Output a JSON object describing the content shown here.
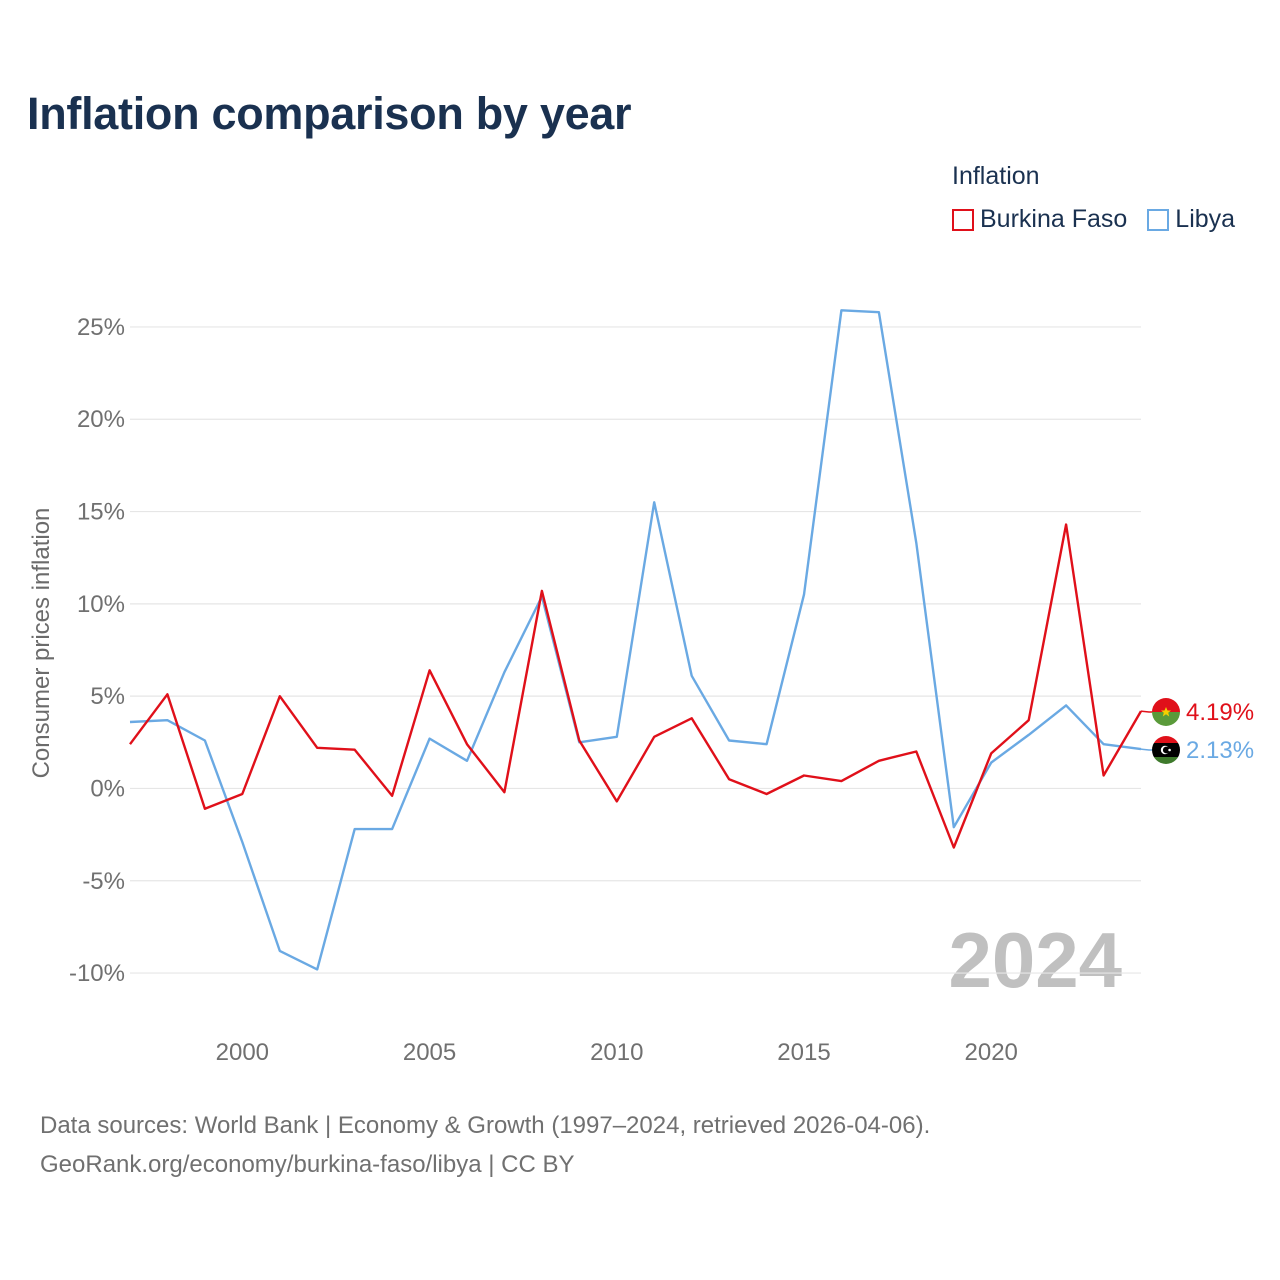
{
  "title": "Inflation comparison by year",
  "legend_title": "Inflation",
  "watermark_year": "2024",
  "source_line1": "Data sources: World Bank | Economy & Growth (1997–2024, retrieved 2026-04-06).",
  "source_line2": "GeoRank.org/economy/burkina-faso/libya | CC BY",
  "chart_data": {
    "type": "line",
    "title": "Inflation comparison by year",
    "xlabel": "",
    "ylabel": "Consumer prices inflation",
    "xlim": [
      1997,
      2024
    ],
    "ylim": [
      -12,
      27
    ],
    "x_ticks": [
      2000,
      2005,
      2010,
      2015,
      2020
    ],
    "y_ticks": [
      -10,
      -5,
      0,
      5,
      10,
      15,
      20,
      25
    ],
    "y_tick_labels": [
      "-10%",
      "-5%",
      "0%",
      "5%",
      "10%",
      "15%",
      "20%",
      "25%"
    ],
    "grid": true,
    "legend_position": "top-right",
    "x": [
      1997,
      1998,
      1999,
      2000,
      2001,
      2002,
      2003,
      2004,
      2005,
      2006,
      2007,
      2008,
      2009,
      2010,
      2011,
      2012,
      2013,
      2014,
      2015,
      2016,
      2017,
      2018,
      2019,
      2020,
      2021,
      2022,
      2023,
      2024
    ],
    "series": [
      {
        "name": "Burkina Faso",
        "color": "#e0101a",
        "end_label": "4.19%",
        "values": [
          2.4,
          5.1,
          -1.1,
          -0.3,
          5.0,
          2.2,
          2.1,
          -0.4,
          6.4,
          2.4,
          -0.2,
          10.7,
          2.6,
          -0.7,
          2.8,
          3.8,
          0.5,
          -0.3,
          0.7,
          0.4,
          1.5,
          2.0,
          -3.2,
          1.9,
          3.7,
          14.3,
          0.7,
          4.19
        ]
      },
      {
        "name": "Libya",
        "color": "#6aa9e3",
        "end_label": "2.13%",
        "values": [
          3.6,
          3.7,
          2.6,
          -2.9,
          -8.8,
          -9.8,
          -2.2,
          -2.2,
          2.7,
          1.5,
          6.3,
          10.4,
          2.5,
          2.8,
          15.5,
          6.1,
          2.6,
          2.4,
          10.5,
          25.9,
          25.8,
          13.3,
          -2.1,
          1.4,
          2.9,
          4.5,
          2.4,
          2.13
        ]
      }
    ]
  }
}
